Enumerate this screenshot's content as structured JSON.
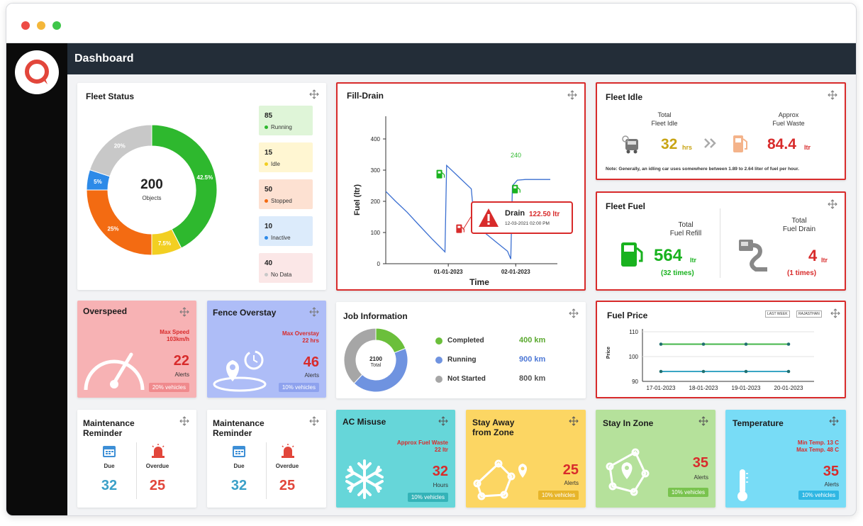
{
  "window": {
    "controls": [
      "#ed4b45",
      "#f4b73a",
      "#3fc64a"
    ]
  },
  "header": {
    "title": "Dashboard"
  },
  "fleet_status": {
    "title": "Fleet Status",
    "total": "200",
    "total_label": "Objects",
    "segments": [
      {
        "label": "Running",
        "count": "85",
        "percent": 42.5,
        "percent_label": "42.5%",
        "color": "#2eb82e",
        "bg": "#dff5d8"
      },
      {
        "label": "Idle",
        "count": "15",
        "percent": 7.5,
        "percent_label": "7.5%",
        "color": "#f2cf22",
        "bg": "#fff6d2"
      },
      {
        "label": "Stopped",
        "count": "50",
        "percent": 25,
        "percent_label": "25%",
        "color": "#f36b12",
        "bg": "#fde1d2"
      },
      {
        "label": "Inactive",
        "count": "10",
        "percent": 5,
        "percent_label": "5%",
        "color": "#2d8ae8",
        "bg": "#dcebfb"
      },
      {
        "label": "No Data",
        "count": "40",
        "percent": 20,
        "percent_label": "20%",
        "color": "#c8c8c8",
        "bg": "#fbe7e7"
      }
    ]
  },
  "fill_drain": {
    "title": "Fill-Drain",
    "xlabel": "Time",
    "ylabel": "Fuel (ltr)",
    "refill_label": "240",
    "popup": {
      "label": "Drain",
      "value": "122.50 ltr",
      "date": "12-03-2021 02:00 PM"
    }
  },
  "chart_data": [
    {
      "type": "line",
      "title": "Fill-Drain",
      "xlabel": "Time",
      "ylabel": "Fuel (ltr)",
      "ylim": [
        0,
        450
      ],
      "y_ticks": [
        0,
        100,
        200,
        300,
        400
      ],
      "x_ticks": [
        "01-01-2023",
        "02-01-2023"
      ],
      "x_tick_pos": [
        0.38,
        0.79
      ],
      "series": [
        {
          "x": [
            0,
            0.06,
            0.13,
            0.2,
            0.28,
            0.36,
            0.37,
            0.39,
            0.45,
            0.52,
            0.53,
            0.54,
            0.6,
            0.67,
            0.74,
            0.76,
            0.77,
            0.8,
            0.85,
            0.9,
            1
          ],
          "y": [
            232,
            200,
            165,
            125,
            80,
            38,
            315,
            305,
            275,
            240,
            180,
            125,
            100,
            70,
            40,
            15,
            250,
            268,
            270,
            270,
            270
          ]
        }
      ]
    },
    {
      "type": "line",
      "title": "Fuel Price",
      "ylabel": "Price",
      "ylim": [
        90,
        110
      ],
      "y_ticks": [
        90,
        100,
        110
      ],
      "categories": [
        "17-01-2023",
        "18-01-2023",
        "19-01-2023",
        "20-01-2023"
      ],
      "series": [
        {
          "values": [
            105,
            105,
            105,
            105
          ],
          "color": "#43b549"
        },
        {
          "values": [
            94,
            94,
            94,
            94
          ],
          "color": "#3aa6c4"
        }
      ]
    }
  ],
  "fleet_idle": {
    "title": "Fleet Idle",
    "idle_label": "Total\nFleet Idle",
    "idle_value": "32",
    "idle_unit": "hrs",
    "waste_label": "Approx\nFuel Waste",
    "waste_value": "84.4",
    "waste_unit": "ltr",
    "note": "Note: Generally, an idling car uses somewhere between 1.89 to 2.64 liter of fuel per hour."
  },
  "fleet_fuel": {
    "title": "Fleet Fuel",
    "refill_label": "Total\nFuel Refill",
    "refill_value": "564",
    "refill_unit": "ltr",
    "refill_times": "(32 times)",
    "drain_label": "Total\nFuel Drain",
    "drain_value": "4",
    "drain_unit": "ltr",
    "drain_times": "(1 times)"
  },
  "overspeed": {
    "title": "Overspeed",
    "max_label": "Max Speed",
    "max_value": "103km/h",
    "value": "22",
    "value_label": "Alerts",
    "badge": "20% vehicles"
  },
  "fence_overstay": {
    "title": "Fence Overstay",
    "max_label": "Max Overstay",
    "max_value": "22 hrs",
    "value": "46",
    "value_label": "Alerts",
    "badge": "10% vehicles"
  },
  "job_info": {
    "title": "Job Information",
    "total": "2100",
    "total_label": "Total",
    "items": [
      {
        "label": "Completed",
        "value": "400 km",
        "color": "#6bbf3b",
        "vcolor": "#5aa82e",
        "share": 0.19
      },
      {
        "label": "Running",
        "value": "900 km",
        "color": "#6f93e0",
        "vcolor": "#4d78d6",
        "share": 0.43
      },
      {
        "label": "Not Started",
        "value": "800 km",
        "color": "#a6a6a6",
        "vcolor": "#555555",
        "share": 0.38
      }
    ]
  },
  "fuel_price": {
    "title": "Fuel Price",
    "range_select": "LAST WEEK",
    "region_select": "RAJASTHAN",
    "ylabel": "Price"
  },
  "maintenance_1": {
    "title": "Maintenance\nReminder",
    "due_label": "Due",
    "due_value": "32",
    "overdue_label": "Overdue",
    "overdue_value": "25"
  },
  "maintenance_2": {
    "title": "Maintenance\nReminder",
    "due_label": "Due",
    "due_value": "32",
    "overdue_label": "Overdue",
    "overdue_value": "25"
  },
  "ac_misuse": {
    "title": "AC Misuse",
    "sub_label": "Approx Fuel Waste",
    "sub_value": "22 ltr",
    "value": "32",
    "value_label": "Hours",
    "badge": "10% vehicles"
  },
  "stay_away": {
    "title": "Stay Away\nfrom Zone",
    "value": "25",
    "value_label": "Alerts",
    "badge": "10% vehicles"
  },
  "stay_in": {
    "title": "Stay In Zone",
    "value": "35",
    "value_label": "Alerts",
    "badge": "10% vehicles"
  },
  "temperature": {
    "title": "Temperature",
    "min_label": "Min Temp. 13 C",
    "max_label": "Max Temp. 48 C",
    "value": "35",
    "value_label": "Alerts",
    "badge": "10% vehicles"
  }
}
